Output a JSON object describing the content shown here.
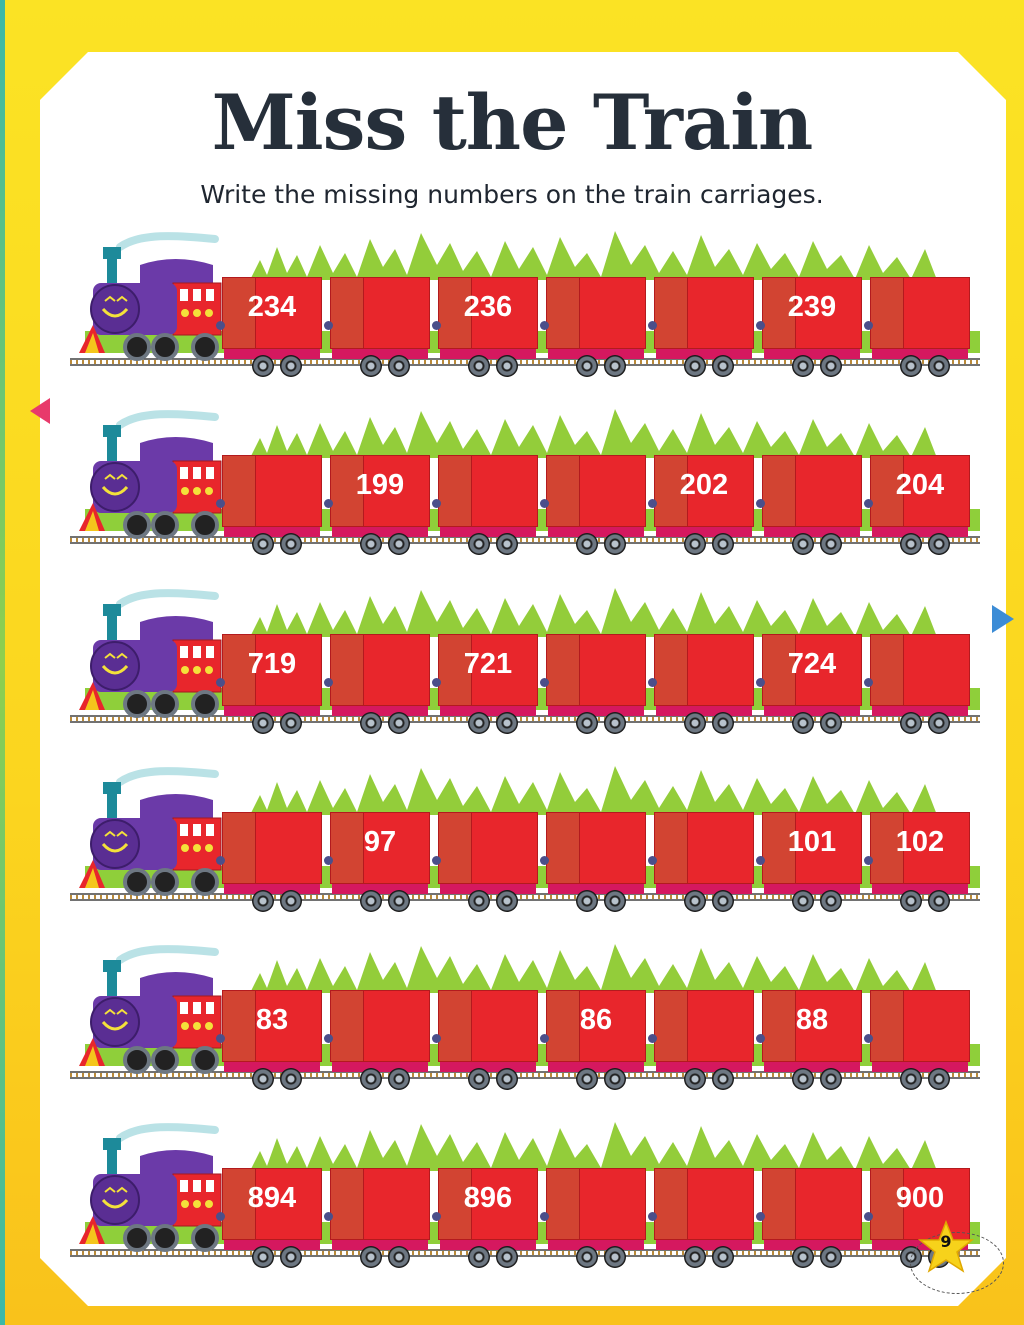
{
  "title": "Miss the Train",
  "instruction": "Write the missing numbers on the train carriages.",
  "page_number": "9",
  "colors": {
    "carriage": "#e8262c",
    "carriage_side": "#d24432",
    "engine_cab": "#e8262c",
    "engine_boiler": "#6b3aa8",
    "trees": "#93cd3a",
    "ground": "#8fcf3a",
    "page_bg": "#fbe324"
  },
  "trains": [
    {
      "carriages": [
        "234",
        "",
        "236",
        "",
        "",
        "239",
        ""
      ]
    },
    {
      "carriages": [
        "",
        "199",
        "",
        "",
        "202",
        "",
        "204"
      ]
    },
    {
      "carriages": [
        "719",
        "",
        "721",
        "",
        "",
        "724",
        ""
      ]
    },
    {
      "carriages": [
        "",
        "97",
        "",
        "",
        "",
        "101",
        "102"
      ]
    },
    {
      "carriages": [
        "83",
        "",
        "",
        "86",
        "",
        "88",
        ""
      ]
    },
    {
      "carriages": [
        "894",
        "",
        "896",
        "",
        "",
        "",
        "900"
      ]
    }
  ]
}
